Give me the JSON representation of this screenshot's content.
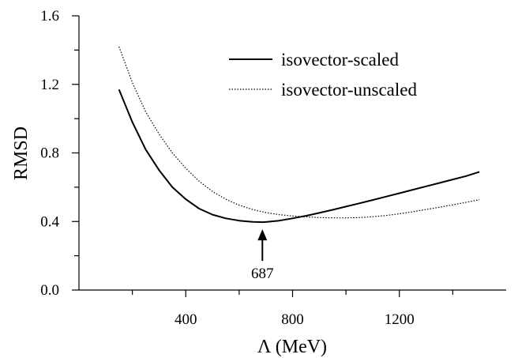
{
  "chart_data": {
    "type": "line",
    "xlabel": "Λ (MeV)",
    "ylabel": "RMSD",
    "xlim": [
      0,
      1600
    ],
    "ylim": [
      0,
      1.6
    ],
    "x_ticks": [
      400,
      800,
      1200
    ],
    "y_ticks": [
      "0.0",
      "0.4",
      "0.8",
      "1.2",
      "1.6"
    ],
    "legend_position": "top-right",
    "grid": false,
    "series": [
      {
        "name": "isovector-scaled",
        "style": "solid",
        "color": "#000000",
        "x": [
          150,
          200,
          250,
          300,
          350,
          400,
          450,
          500,
          550,
          600,
          650,
          687,
          700,
          750,
          800,
          850,
          900,
          950,
          1000,
          1050,
          1100,
          1150,
          1200,
          1250,
          1300,
          1350,
          1400,
          1450,
          1500
        ],
        "y": [
          1.17,
          0.98,
          0.82,
          0.7,
          0.6,
          0.53,
          0.475,
          0.44,
          0.418,
          0.405,
          0.398,
          0.396,
          0.397,
          0.405,
          0.418,
          0.433,
          0.45,
          0.468,
          0.487,
          0.506,
          0.525,
          0.545,
          0.565,
          0.585,
          0.605,
          0.625,
          0.645,
          0.665,
          0.69
        ]
      },
      {
        "name": "isovector-unscaled",
        "style": "dotted",
        "color": "#000000",
        "x": [
          150,
          200,
          250,
          300,
          350,
          400,
          450,
          500,
          550,
          600,
          650,
          700,
          750,
          800,
          850,
          900,
          950,
          1000,
          1050,
          1100,
          1150,
          1200,
          1250,
          1300,
          1350,
          1400,
          1450,
          1500
        ],
        "y": [
          1.42,
          1.21,
          1.04,
          0.91,
          0.8,
          0.71,
          0.635,
          0.575,
          0.53,
          0.495,
          0.47,
          0.452,
          0.44,
          0.432,
          0.427,
          0.423,
          0.421,
          0.421,
          0.423,
          0.428,
          0.435,
          0.445,
          0.457,
          0.47,
          0.483,
          0.497,
          0.512,
          0.527
        ]
      }
    ],
    "annotations": [
      {
        "text": "687",
        "x": 687,
        "y_arrow_tip": 0.396,
        "y_arrow_tail": 0.17
      }
    ]
  }
}
